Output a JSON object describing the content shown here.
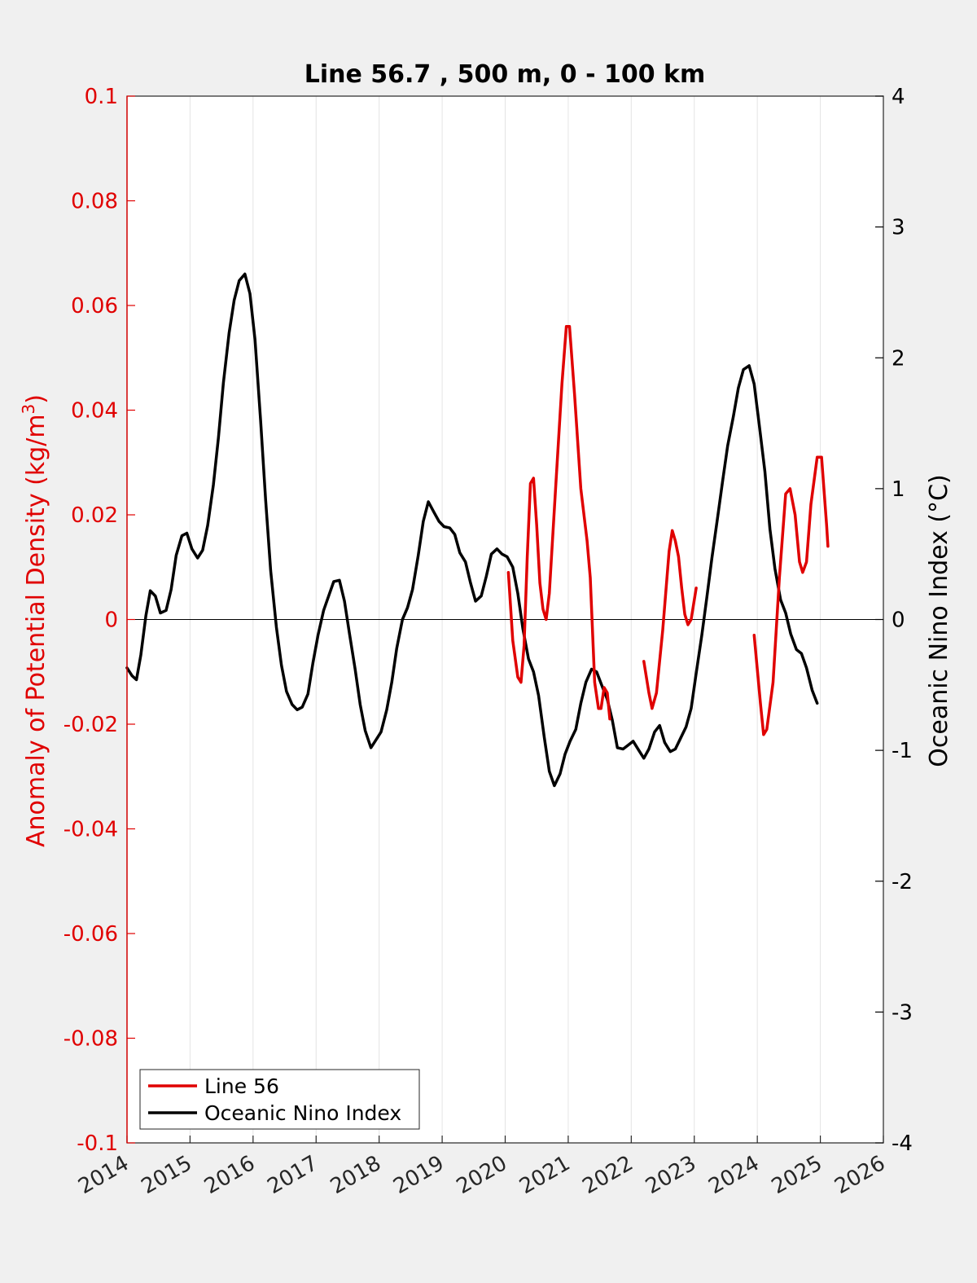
{
  "chart_data": {
    "type": "line",
    "title": "Line 56.7 , 500 m, 0 - 100 km",
    "ylabel_left": "Anomaly of Potential Density (kg/m",
    "ylabel_left_sup": "3",
    "ylabel_left_close": ")",
    "ylabel_right": "Oceanic Nino Index (°C)",
    "xlim": [
      2014,
      2026
    ],
    "ylim_left": [
      -0.1,
      0.1
    ],
    "ylim_right": [
      -4,
      4
    ],
    "x_ticks": [
      "2014",
      "2015",
      "2016",
      "2017",
      "2018",
      "2019",
      "2020",
      "2021",
      "2022",
      "2023",
      "2024",
      "2025",
      "2026"
    ],
    "y_left_ticks": [
      "-0.1",
      "-0.08",
      "-0.06",
      "-0.04",
      "-0.02",
      "0",
      "0.02",
      "0.04",
      "0.06",
      "0.08",
      "0.1"
    ],
    "y_right_ticks": [
      "-4",
      "-3",
      "-2",
      "-1",
      "0",
      "1",
      "2",
      "3",
      "4"
    ],
    "grid": "vertical",
    "zero_line": true,
    "colors": {
      "line56": "#e00000",
      "oni": "#000000",
      "left_axis": "#e00000",
      "right_axis": "#000000"
    },
    "legend": {
      "placement": "bottom-left",
      "entries": [
        {
          "label": "Line 56",
          "color": "#e00000"
        },
        {
          "label": "Oceanic Nino Index",
          "color": "#000000"
        }
      ]
    },
    "series": [
      {
        "name": "Line 56",
        "axis": "left",
        "color": "#e00000",
        "segments": [
          [
            [
              2020.05,
              0.009
            ],
            [
              2020.12,
              -0.004
            ],
            [
              2020.2,
              -0.011
            ],
            [
              2020.25,
              -0.012
            ],
            [
              2020.3,
              -0.005
            ],
            [
              2020.35,
              0.012
            ],
            [
              2020.4,
              0.026
            ],
            [
              2020.45,
              0.027
            ],
            [
              2020.5,
              0.018
            ],
            [
              2020.55,
              0.007
            ],
            [
              2020.6,
              0.002
            ],
            [
              2020.65,
              0.0
            ],
            [
              2020.7,
              0.005
            ],
            [
              2020.8,
              0.025
            ],
            [
              2020.9,
              0.045
            ],
            [
              2020.97,
              0.056
            ],
            [
              2021.02,
              0.056
            ],
            [
              2021.1,
              0.043
            ],
            [
              2021.2,
              0.025
            ],
            [
              2021.3,
              0.015
            ],
            [
              2021.35,
              0.008
            ],
            [
              2021.42,
              -0.012
            ],
            [
              2021.48,
              -0.017
            ],
            [
              2021.52,
              -0.017
            ],
            [
              2021.57,
              -0.013
            ],
            [
              2021.62,
              -0.014
            ],
            [
              2021.66,
              -0.019
            ]
          ],
          [
            [
              2022.2,
              -0.008
            ],
            [
              2022.28,
              -0.014
            ],
            [
              2022.33,
              -0.017
            ],
            [
              2022.4,
              -0.014
            ],
            [
              2022.5,
              -0.002
            ],
            [
              2022.6,
              0.013
            ],
            [
              2022.65,
              0.017
            ],
            [
              2022.7,
              0.015
            ],
            [
              2022.75,
              0.012
            ],
            [
              2022.8,
              0.006
            ],
            [
              2022.85,
              0.001
            ],
            [
              2022.9,
              -0.001
            ],
            [
              2022.95,
              0.0
            ],
            [
              2023.03,
              0.006
            ]
          ],
          [
            [
              2023.95,
              -0.003
            ],
            [
              2024.05,
              -0.016
            ],
            [
              2024.1,
              -0.022
            ],
            [
              2024.15,
              -0.021
            ],
            [
              2024.25,
              -0.012
            ],
            [
              2024.35,
              0.008
            ],
            [
              2024.45,
              0.024
            ],
            [
              2024.52,
              0.025
            ],
            [
              2024.6,
              0.02
            ],
            [
              2024.67,
              0.011
            ],
            [
              2024.72,
              0.009
            ],
            [
              2024.78,
              0.011
            ],
            [
              2024.85,
              0.022
            ],
            [
              2024.95,
              0.031
            ],
            [
              2025.02,
              0.031
            ],
            [
              2025.1,
              0.018
            ],
            [
              2025.12,
              0.014
            ]
          ]
        ]
      },
      {
        "name": "Oceanic Nino Index",
        "axis": "right",
        "color": "#000000",
        "points": [
          [
            2014.0,
            -0.37
          ],
          [
            2014.08,
            -0.43
          ],
          [
            2014.15,
            -0.46
          ],
          [
            2014.22,
            -0.27
          ],
          [
            2014.3,
            0.03
          ],
          [
            2014.37,
            0.22
          ],
          [
            2014.45,
            0.18
          ],
          [
            2014.53,
            0.05
          ],
          [
            2014.62,
            0.07
          ],
          [
            2014.7,
            0.23
          ],
          [
            2014.78,
            0.49
          ],
          [
            2014.87,
            0.64
          ],
          [
            2014.95,
            0.66
          ],
          [
            2015.03,
            0.54
          ],
          [
            2015.12,
            0.47
          ],
          [
            2015.2,
            0.53
          ],
          [
            2015.28,
            0.72
          ],
          [
            2015.37,
            1.03
          ],
          [
            2015.45,
            1.39
          ],
          [
            2015.53,
            1.81
          ],
          [
            2015.62,
            2.19
          ],
          [
            2015.7,
            2.44
          ],
          [
            2015.78,
            2.59
          ],
          [
            2015.87,
            2.64
          ],
          [
            2015.95,
            2.49
          ],
          [
            2016.03,
            2.14
          ],
          [
            2016.12,
            1.52
          ],
          [
            2016.2,
            0.91
          ],
          [
            2016.28,
            0.37
          ],
          [
            2016.37,
            -0.06
          ],
          [
            2016.45,
            -0.35
          ],
          [
            2016.53,
            -0.55
          ],
          [
            2016.62,
            -0.65
          ],
          [
            2016.7,
            -0.69
          ],
          [
            2016.78,
            -0.67
          ],
          [
            2016.87,
            -0.57
          ],
          [
            2016.95,
            -0.33
          ],
          [
            2017.03,
            -0.12
          ],
          [
            2017.12,
            0.07
          ],
          [
            2017.2,
            0.18
          ],
          [
            2017.28,
            0.29
          ],
          [
            2017.37,
            0.3
          ],
          [
            2017.45,
            0.14
          ],
          [
            2017.53,
            -0.11
          ],
          [
            2017.62,
            -0.38
          ],
          [
            2017.7,
            -0.65
          ],
          [
            2017.78,
            -0.85
          ],
          [
            2017.87,
            -0.98
          ],
          [
            2017.95,
            -0.92
          ],
          [
            2018.03,
            -0.86
          ],
          [
            2018.12,
            -0.69
          ],
          [
            2018.2,
            -0.48
          ],
          [
            2018.28,
            -0.22
          ],
          [
            2018.37,
            0.0
          ],
          [
            2018.45,
            0.09
          ],
          [
            2018.53,
            0.23
          ],
          [
            2018.62,
            0.49
          ],
          [
            2018.7,
            0.75
          ],
          [
            2018.78,
            0.9
          ],
          [
            2018.87,
            0.82
          ],
          [
            2018.95,
            0.75
          ],
          [
            2019.03,
            0.71
          ],
          [
            2019.12,
            0.7
          ],
          [
            2019.2,
            0.65
          ],
          [
            2019.28,
            0.51
          ],
          [
            2019.37,
            0.44
          ],
          [
            2019.45,
            0.28
          ],
          [
            2019.53,
            0.14
          ],
          [
            2019.62,
            0.18
          ],
          [
            2019.7,
            0.33
          ],
          [
            2019.78,
            0.5
          ],
          [
            2019.87,
            0.54
          ],
          [
            2019.95,
            0.5
          ],
          [
            2020.03,
            0.48
          ],
          [
            2020.12,
            0.4
          ],
          [
            2020.2,
            0.2
          ],
          [
            2020.28,
            -0.07
          ],
          [
            2020.37,
            -0.3
          ],
          [
            2020.45,
            -0.4
          ],
          [
            2020.53,
            -0.58
          ],
          [
            2020.62,
            -0.9
          ],
          [
            2020.7,
            -1.16
          ],
          [
            2020.78,
            -1.27
          ],
          [
            2020.87,
            -1.18
          ],
          [
            2020.95,
            -1.03
          ],
          [
            2021.03,
            -0.93
          ],
          [
            2021.12,
            -0.84
          ],
          [
            2021.2,
            -0.64
          ],
          [
            2021.28,
            -0.48
          ],
          [
            2021.37,
            -0.38
          ],
          [
            2021.45,
            -0.4
          ],
          [
            2021.53,
            -0.5
          ],
          [
            2021.62,
            -0.61
          ],
          [
            2021.7,
            -0.77
          ],
          [
            2021.78,
            -0.98
          ],
          [
            2021.87,
            -0.99
          ],
          [
            2021.95,
            -0.96
          ],
          [
            2022.03,
            -0.93
          ],
          [
            2022.12,
            -1.0
          ],
          [
            2022.2,
            -1.06
          ],
          [
            2022.28,
            -0.99
          ],
          [
            2022.37,
            -0.86
          ],
          [
            2022.45,
            -0.81
          ],
          [
            2022.53,
            -0.94
          ],
          [
            2022.62,
            -1.01
          ],
          [
            2022.7,
            -0.99
          ],
          [
            2022.78,
            -0.91
          ],
          [
            2022.87,
            -0.82
          ],
          [
            2022.95,
            -0.68
          ],
          [
            2023.03,
            -0.41
          ],
          [
            2023.12,
            -0.12
          ],
          [
            2023.2,
            0.17
          ],
          [
            2023.28,
            0.47
          ],
          [
            2023.37,
            0.78
          ],
          [
            2023.45,
            1.06
          ],
          [
            2023.53,
            1.33
          ],
          [
            2023.62,
            1.55
          ],
          [
            2023.7,
            1.77
          ],
          [
            2023.78,
            1.91
          ],
          [
            2023.87,
            1.94
          ],
          [
            2023.95,
            1.8
          ],
          [
            2024.03,
            1.49
          ],
          [
            2024.12,
            1.13
          ],
          [
            2024.2,
            0.69
          ],
          [
            2024.28,
            0.39
          ],
          [
            2024.37,
            0.15
          ],
          [
            2024.45,
            0.05
          ],
          [
            2024.53,
            -0.11
          ],
          [
            2024.62,
            -0.23
          ],
          [
            2024.7,
            -0.26
          ],
          [
            2024.78,
            -0.37
          ],
          [
            2024.87,
            -0.54
          ],
          [
            2024.95,
            -0.64
          ]
        ]
      }
    ]
  }
}
